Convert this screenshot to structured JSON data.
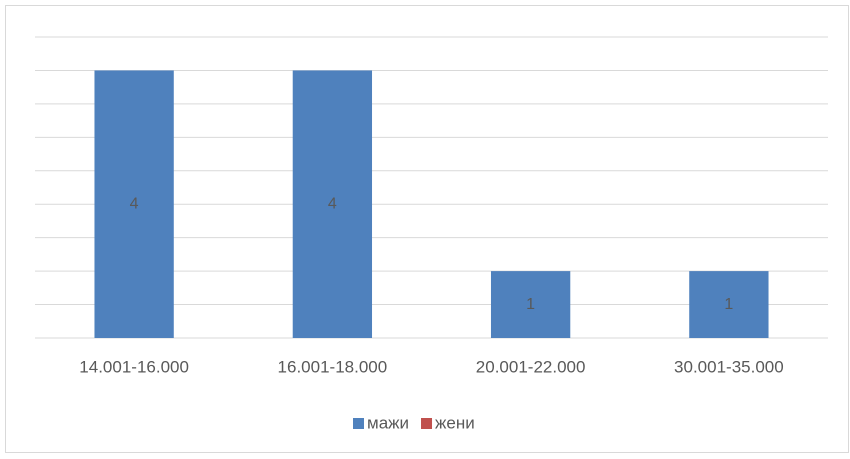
{
  "chart_data": {
    "type": "bar",
    "categories": [
      "14.001-16.000",
      "16.001-18.000",
      "20.001-22.000",
      "30.001-35.000"
    ],
    "series": [
      {
        "name": "мажи",
        "color": "#4f81bd",
        "values": [
          4,
          4,
          1,
          1
        ]
      },
      {
        "name": "жени",
        "color": "#c0504d",
        "values": [
          null,
          null,
          null,
          null
        ]
      }
    ],
    "ylim": [
      0,
      4.5
    ],
    "yticks": [
      0,
      0.5,
      1,
      1.5,
      2,
      2.5,
      3,
      3.5,
      4,
      4.5
    ],
    "grid": true,
    "legend": "bottom"
  }
}
